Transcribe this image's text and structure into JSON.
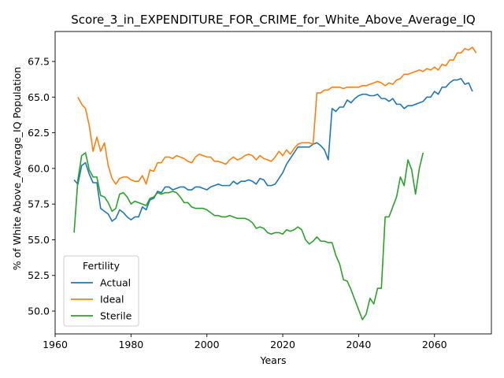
{
  "chart_data": {
    "type": "line",
    "title": "Score_3_in_EXPENDITURE_FOR_CRIME_for_White_Above_Average_IQ",
    "xlabel": "Years",
    "ylabel": "% of White Above_Average_IQ Population",
    "xlim": [
      1960,
      2075
    ],
    "ylim": [
      48.4,
      69.6
    ],
    "xticks": [
      1960,
      1980,
      2000,
      2020,
      2040,
      2060
    ],
    "yticks": [
      50.0,
      52.5,
      55.0,
      57.5,
      60.0,
      62.5,
      65.0,
      67.5
    ],
    "ytick_labels": [
      "50.0",
      "52.5",
      "55.0",
      "57.5",
      "60.0",
      "62.5",
      "65.0",
      "67.5"
    ],
    "grid": false,
    "legend": {
      "title": "Fertility",
      "placement": "lower-left"
    },
    "series": [
      {
        "name": "Actual",
        "color": "#1f77b4",
        "points": [
          [
            1965,
            59.2
          ],
          [
            1966,
            58.9
          ],
          [
            1967,
            60.2
          ],
          [
            1968,
            60.4
          ],
          [
            1969,
            59.6
          ],
          [
            1970,
            59.0
          ],
          [
            1971,
            59.0
          ],
          [
            1972,
            57.2
          ],
          [
            1973,
            57.0
          ],
          [
            1974,
            56.8
          ],
          [
            1975,
            56.3
          ],
          [
            1976,
            56.5
          ],
          [
            1977,
            57.1
          ],
          [
            1978,
            56.9
          ],
          [
            1979,
            56.6
          ],
          [
            1980,
            56.4
          ],
          [
            1981,
            56.6
          ],
          [
            1982,
            56.6
          ],
          [
            1983,
            57.3
          ],
          [
            1984,
            57.1
          ],
          [
            1985,
            57.8
          ],
          [
            1986,
            57.9
          ],
          [
            1987,
            58.4
          ],
          [
            1988,
            58.3
          ],
          [
            1989,
            58.7
          ],
          [
            1990,
            58.7
          ],
          [
            1991,
            58.5
          ],
          [
            1992,
            58.6
          ],
          [
            1993,
            58.7
          ],
          [
            1994,
            58.7
          ],
          [
            1995,
            58.5
          ],
          [
            1996,
            58.5
          ],
          [
            1997,
            58.7
          ],
          [
            1998,
            58.7
          ],
          [
            1999,
            58.6
          ],
          [
            2000,
            58.5
          ],
          [
            2001,
            58.7
          ],
          [
            2002,
            58.8
          ],
          [
            2003,
            58.9
          ],
          [
            2004,
            58.8
          ],
          [
            2005,
            58.8
          ],
          [
            2006,
            58.8
          ],
          [
            2007,
            59.1
          ],
          [
            2008,
            58.9
          ],
          [
            2009,
            59.1
          ],
          [
            2010,
            59.1
          ],
          [
            2011,
            59.2
          ],
          [
            2012,
            59.1
          ],
          [
            2013,
            58.9
          ],
          [
            2014,
            59.3
          ],
          [
            2015,
            59.2
          ],
          [
            2016,
            58.8
          ],
          [
            2017,
            58.8
          ],
          [
            2018,
            58.9
          ],
          [
            2019,
            59.3
          ],
          [
            2020,
            59.7
          ],
          [
            2021,
            60.3
          ],
          [
            2022,
            60.7
          ],
          [
            2023,
            61.1
          ],
          [
            2024,
            61.5
          ],
          [
            2025,
            61.5
          ],
          [
            2026,
            61.5
          ],
          [
            2027,
            61.5
          ],
          [
            2028,
            61.7
          ],
          [
            2029,
            61.8
          ],
          [
            2030,
            61.6
          ],
          [
            2031,
            61.3
          ],
          [
            2032,
            60.6
          ],
          [
            2033,
            64.2
          ],
          [
            2034,
            64.0
          ],
          [
            2035,
            64.3
          ],
          [
            2036,
            64.3
          ],
          [
            2037,
            64.8
          ],
          [
            2038,
            64.6
          ],
          [
            2039,
            64.9
          ],
          [
            2040,
            65.1
          ],
          [
            2041,
            65.2
          ],
          [
            2042,
            65.2
          ],
          [
            2043,
            65.1
          ],
          [
            2044,
            65.1
          ],
          [
            2045,
            65.2
          ],
          [
            2046,
            64.9
          ],
          [
            2047,
            64.9
          ],
          [
            2048,
            64.7
          ],
          [
            2049,
            64.9
          ],
          [
            2050,
            64.5
          ],
          [
            2051,
            64.5
          ],
          [
            2052,
            64.2
          ],
          [
            2053,
            64.4
          ],
          [
            2054,
            64.4
          ],
          [
            2055,
            64.5
          ],
          [
            2056,
            64.6
          ],
          [
            2057,
            64.7
          ],
          [
            2058,
            65.0
          ],
          [
            2059,
            65.0
          ],
          [
            2060,
            65.4
          ],
          [
            2061,
            65.2
          ],
          [
            2062,
            65.7
          ],
          [
            2063,
            65.7
          ],
          [
            2064,
            66.0
          ],
          [
            2065,
            66.2
          ],
          [
            2066,
            66.2
          ],
          [
            2067,
            66.3
          ],
          [
            2068,
            65.9
          ],
          [
            2069,
            66.0
          ],
          [
            2070,
            65.4
          ]
        ]
      },
      {
        "name": "Ideal",
        "color": "#ff7f0e",
        "points": [
          [
            1966,
            65.0
          ],
          [
            1967,
            64.5
          ],
          [
            1968,
            64.2
          ],
          [
            1969,
            63.0
          ],
          [
            1970,
            61.2
          ],
          [
            1971,
            62.2
          ],
          [
            1972,
            61.2
          ],
          [
            1973,
            61.8
          ],
          [
            1974,
            60.2
          ],
          [
            1975,
            59.3
          ],
          [
            1976,
            58.9
          ],
          [
            1977,
            59.3
          ],
          [
            1978,
            59.4
          ],
          [
            1979,
            59.4
          ],
          [
            1980,
            59.2
          ],
          [
            1981,
            59.1
          ],
          [
            1982,
            59.1
          ],
          [
            1983,
            59.5
          ],
          [
            1984,
            58.9
          ],
          [
            1985,
            59.9
          ],
          [
            1986,
            59.8
          ],
          [
            1987,
            60.4
          ],
          [
            1988,
            60.4
          ],
          [
            1989,
            60.8
          ],
          [
            1990,
            60.8
          ],
          [
            1991,
            60.7
          ],
          [
            1992,
            60.9
          ],
          [
            1993,
            60.8
          ],
          [
            1994,
            60.7
          ],
          [
            1995,
            60.5
          ],
          [
            1996,
            60.4
          ],
          [
            1997,
            60.8
          ],
          [
            1998,
            61.0
          ],
          [
            1999,
            60.9
          ],
          [
            2000,
            60.8
          ],
          [
            2001,
            60.8
          ],
          [
            2002,
            60.5
          ],
          [
            2003,
            60.5
          ],
          [
            2004,
            60.4
          ],
          [
            2005,
            60.3
          ],
          [
            2006,
            60.6
          ],
          [
            2007,
            60.8
          ],
          [
            2008,
            60.6
          ],
          [
            2009,
            60.7
          ],
          [
            2010,
            60.9
          ],
          [
            2011,
            61.0
          ],
          [
            2012,
            60.9
          ],
          [
            2013,
            60.6
          ],
          [
            2014,
            60.9
          ],
          [
            2015,
            60.7
          ],
          [
            2016,
            60.6
          ],
          [
            2017,
            60.5
          ],
          [
            2018,
            60.8
          ],
          [
            2019,
            61.2
          ],
          [
            2020,
            60.9
          ],
          [
            2021,
            61.3
          ],
          [
            2022,
            61.0
          ],
          [
            2023,
            61.4
          ],
          [
            2024,
            61.7
          ],
          [
            2025,
            61.8
          ],
          [
            2026,
            61.8
          ],
          [
            2027,
            61.8
          ],
          [
            2028,
            61.7
          ],
          [
            2029,
            65.3
          ],
          [
            2030,
            65.3
          ],
          [
            2031,
            65.5
          ],
          [
            2032,
            65.5
          ],
          [
            2033,
            65.7
          ],
          [
            2034,
            65.7
          ],
          [
            2035,
            65.7
          ],
          [
            2036,
            65.6
          ],
          [
            2037,
            65.7
          ],
          [
            2038,
            65.7
          ],
          [
            2039,
            65.7
          ],
          [
            2040,
            65.7
          ],
          [
            2041,
            65.8
          ],
          [
            2042,
            65.8
          ],
          [
            2043,
            65.9
          ],
          [
            2044,
            66.0
          ],
          [
            2045,
            66.1
          ],
          [
            2046,
            66.0
          ],
          [
            2047,
            65.8
          ],
          [
            2048,
            66.0
          ],
          [
            2049,
            65.9
          ],
          [
            2050,
            66.2
          ],
          [
            2051,
            66.3
          ],
          [
            2052,
            66.6
          ],
          [
            2053,
            66.6
          ],
          [
            2054,
            66.7
          ],
          [
            2055,
            66.8
          ],
          [
            2056,
            66.9
          ],
          [
            2057,
            66.8
          ],
          [
            2058,
            67.0
          ],
          [
            2059,
            66.9
          ],
          [
            2060,
            67.1
          ],
          [
            2061,
            66.9
          ],
          [
            2062,
            67.3
          ],
          [
            2063,
            67.2
          ],
          [
            2064,
            67.6
          ],
          [
            2065,
            67.6
          ],
          [
            2066,
            68.1
          ],
          [
            2067,
            68.1
          ],
          [
            2068,
            68.4
          ],
          [
            2069,
            68.3
          ],
          [
            2070,
            68.5
          ],
          [
            2071,
            68.1
          ]
        ]
      },
      {
        "name": "Sterile",
        "color": "#2ca02c",
        "points": [
          [
            1965,
            55.5
          ],
          [
            1966,
            59.2
          ],
          [
            1967,
            60.9
          ],
          [
            1968,
            61.1
          ],
          [
            1969,
            59.9
          ],
          [
            1970,
            59.4
          ],
          [
            1971,
            59.4
          ],
          [
            1972,
            58.1
          ],
          [
            1973,
            58.0
          ],
          [
            1974,
            57.6
          ],
          [
            1975,
            57.0
          ],
          [
            1976,
            57.2
          ],
          [
            1977,
            58.2
          ],
          [
            1978,
            58.3
          ],
          [
            1979,
            58.0
          ],
          [
            1980,
            57.5
          ],
          [
            1981,
            57.7
          ],
          [
            1982,
            57.6
          ],
          [
            1983,
            57.5
          ],
          [
            1984,
            57.4
          ],
          [
            1985,
            57.9
          ],
          [
            1986,
            58.0
          ],
          [
            1987,
            58.3
          ],
          [
            1988,
            58.2
          ],
          [
            1989,
            58.3
          ],
          [
            1990,
            58.3
          ],
          [
            1991,
            58.4
          ],
          [
            1992,
            58.3
          ],
          [
            1993,
            58.0
          ],
          [
            1994,
            57.6
          ],
          [
            1995,
            57.6
          ],
          [
            1996,
            57.3
          ],
          [
            1997,
            57.2
          ],
          [
            1998,
            57.2
          ],
          [
            1999,
            57.2
          ],
          [
            2000,
            57.1
          ],
          [
            2001,
            56.9
          ],
          [
            2002,
            56.7
          ],
          [
            2003,
            56.7
          ],
          [
            2004,
            56.6
          ],
          [
            2005,
            56.6
          ],
          [
            2006,
            56.7
          ],
          [
            2007,
            56.6
          ],
          [
            2008,
            56.5
          ],
          [
            2009,
            56.5
          ],
          [
            2010,
            56.5
          ],
          [
            2011,
            56.4
          ],
          [
            2012,
            56.2
          ],
          [
            2013,
            55.8
          ],
          [
            2014,
            55.9
          ],
          [
            2015,
            55.8
          ],
          [
            2016,
            55.5
          ],
          [
            2017,
            55.4
          ],
          [
            2018,
            55.5
          ],
          [
            2019,
            55.5
          ],
          [
            2020,
            55.4
          ],
          [
            2021,
            55.7
          ],
          [
            2022,
            55.6
          ],
          [
            2023,
            55.7
          ],
          [
            2024,
            55.9
          ],
          [
            2025,
            55.7
          ],
          [
            2026,
            55.0
          ],
          [
            2027,
            54.7
          ],
          [
            2028,
            54.9
          ],
          [
            2029,
            55.2
          ],
          [
            2030,
            54.9
          ],
          [
            2031,
            54.9
          ],
          [
            2032,
            54.8
          ],
          [
            2033,
            54.8
          ],
          [
            2034,
            53.9
          ],
          [
            2035,
            53.3
          ],
          [
            2036,
            52.2
          ],
          [
            2037,
            52.1
          ],
          [
            2038,
            51.5
          ],
          [
            2039,
            50.8
          ],
          [
            2040,
            50.1
          ],
          [
            2041,
            49.4
          ],
          [
            2042,
            49.8
          ],
          [
            2043,
            50.9
          ],
          [
            2044,
            50.5
          ],
          [
            2045,
            51.6
          ],
          [
            2046,
            51.6
          ],
          [
            2047,
            56.6
          ],
          [
            2048,
            56.6
          ],
          [
            2049,
            57.3
          ],
          [
            2050,
            58.0
          ],
          [
            2051,
            59.4
          ],
          [
            2052,
            58.8
          ],
          [
            2053,
            60.6
          ],
          [
            2054,
            59.9
          ],
          [
            2055,
            58.2
          ],
          [
            2056,
            60.0
          ],
          [
            2057,
            61.1
          ]
        ]
      }
    ]
  }
}
